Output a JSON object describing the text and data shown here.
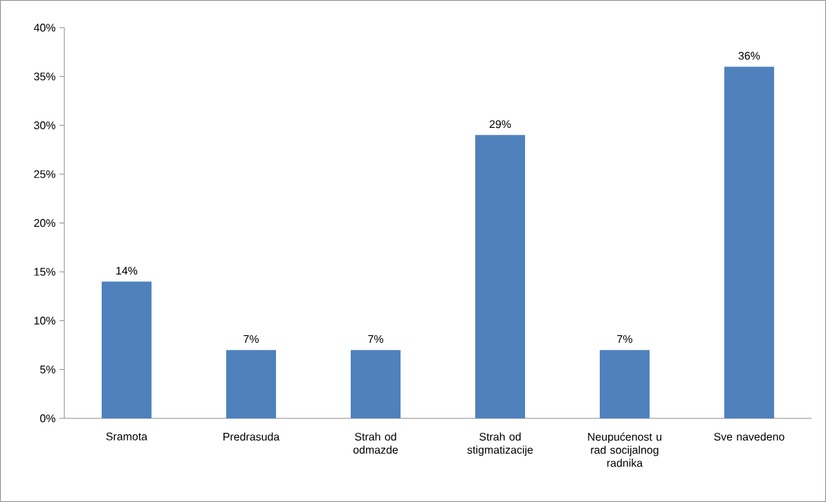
{
  "chart_data": {
    "type": "bar",
    "categories": [
      "Sramota",
      "Predrasuda",
      "Strah od odmazde",
      "Strah od stigmatizacije",
      "Neupućenost u rad socijalnog radnika",
      "Sve navedeno"
    ],
    "values": [
      14,
      7,
      7,
      29,
      7,
      36
    ],
    "value_labels": [
      "14%",
      "7%",
      "7%",
      "29%",
      "7%",
      "36%"
    ],
    "color": "#4f81bd",
    "ylim": [
      0,
      40
    ],
    "yticks": [
      {
        "value": 0,
        "label": "0%"
      },
      {
        "value": 5,
        "label": "5%"
      },
      {
        "value": 10,
        "label": "10%"
      },
      {
        "value": 15,
        "label": "15%"
      },
      {
        "value": 20,
        "label": "20%"
      },
      {
        "value": 25,
        "label": "25%"
      },
      {
        "value": 30,
        "label": "30%"
      },
      {
        "value": 35,
        "label": "35%"
      },
      {
        "value": 40,
        "label": "40%"
      }
    ]
  }
}
